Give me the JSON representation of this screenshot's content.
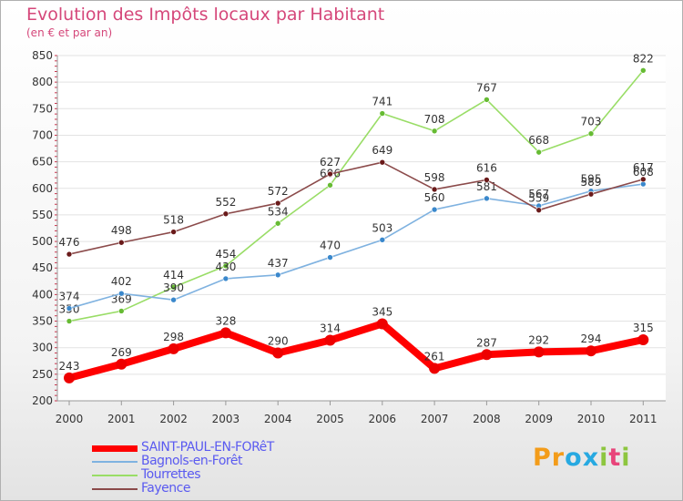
{
  "header": {
    "title": "Evolution des Impôts locaux par Habitant",
    "subtitle": "(en € et par an)"
  },
  "logo": {
    "letters": [
      "P",
      "r",
      "o",
      "x",
      "i",
      "t",
      "i"
    ],
    "colors": [
      "#f39c1a",
      "#f39c1a",
      "#27a9e1",
      "#27a9e1",
      "#8dc63f",
      "#e8447a",
      "#8dc63f"
    ]
  },
  "chart_data": {
    "type": "line",
    "title": "Evolution des Impôts locaux par Habitant",
    "subtitle": "(en € et par an)",
    "xlabel": "",
    "ylabel": "",
    "x": [
      "2000",
      "2001",
      "2002",
      "2003",
      "2004",
      "2005",
      "2006",
      "2007",
      "2008",
      "2009",
      "2010",
      "2011"
    ],
    "ylim": [
      200,
      850
    ],
    "yticks": [
      "200",
      "250",
      "300",
      "350",
      "400",
      "450",
      "500",
      "550",
      "600",
      "650",
      "700",
      "750",
      "800",
      "850"
    ],
    "grid": true,
    "legend_position": "bottom-left",
    "series": [
      {
        "name": "Tourrettes",
        "color": "#99dd66",
        "marker": "#66bb33",
        "values": [
          350,
          369,
          414,
          454,
          534,
          606,
          741,
          708,
          767,
          668,
          703,
          822
        ],
        "labels": [
          "350",
          "369",
          "414",
          "454",
          "534",
          "606",
          "741",
          "708",
          "767",
          "668",
          "703",
          "822"
        ]
      },
      {
        "name": "Bagnols-en-Forêt",
        "color": "#7fb2e0",
        "marker": "#3a88cc",
        "values": [
          374,
          402,
          390,
          430,
          437,
          470,
          503,
          560,
          581,
          567,
          595,
          608
        ],
        "labels": [
          "374",
          "402",
          "390",
          "430",
          "437",
          "470",
          "503",
          "560",
          "581",
          "567",
          "595",
          "608"
        ]
      },
      {
        "name": "Fayence",
        "color": "#8b4a4a",
        "marker": "#6a1a1a",
        "values": [
          476,
          498,
          518,
          552,
          572,
          627,
          649,
          598,
          616,
          559,
          589,
          617
        ],
        "labels": [
          "476",
          "498",
          "518",
          "552",
          "572",
          "627",
          "649",
          "598",
          "616",
          "559",
          "589",
          "617"
        ]
      },
      {
        "name": "SAINT-PAUL-EN-FORêT",
        "color": "#ff0000",
        "marker": "#ee0000",
        "values": [
          243,
          269,
          298,
          328,
          290,
          314,
          345,
          261,
          287,
          292,
          294,
          315
        ],
        "labels": [
          "243",
          "269",
          "298",
          "328",
          "290",
          "314",
          "345",
          "261",
          "287",
          "292",
          "294",
          "315"
        ]
      }
    ]
  },
  "legend": {
    "items": [
      {
        "label": "SAINT-PAUL-EN-FORêT",
        "color": "#ff0000"
      },
      {
        "label": "Bagnols-en-Forêt",
        "color": "#7fb2e0"
      },
      {
        "label": "Tourrettes",
        "color": "#99dd66"
      },
      {
        "label": "Fayence",
        "color": "#8b4a4a"
      }
    ]
  }
}
